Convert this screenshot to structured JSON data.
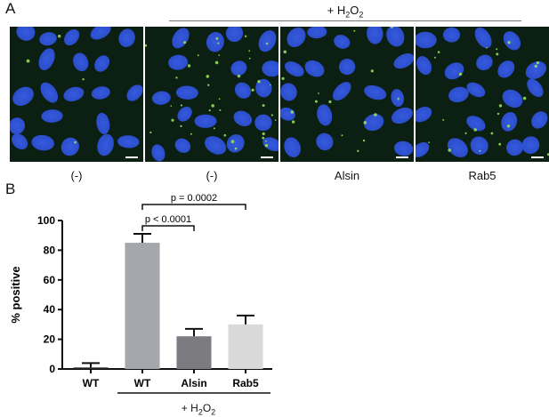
{
  "panel_a": {
    "letter": "A",
    "treatment_label": {
      "prefix": "+ H",
      "sub": "2",
      "mid": "O",
      "sub2": "2"
    },
    "images": [
      {
        "label": "(-)"
      },
      {
        "label": "(-)"
      },
      {
        "label": "Alsin"
      },
      {
        "label": "Rab5"
      }
    ],
    "colors": {
      "nucleus": "#2c4fd6",
      "background": "#0b1f12",
      "puncta": "#9be85a"
    }
  },
  "panel_b": {
    "letter": "B",
    "treatment_label": {
      "prefix": "+ H",
      "sub": "2",
      "mid": "O",
      "sub2": "2"
    }
  },
  "chart_data": {
    "type": "bar",
    "categories": [
      "WT",
      "WT",
      "Alsin",
      "Rab5"
    ],
    "values": [
      1,
      85,
      22,
      30
    ],
    "errors": [
      3,
      6,
      5,
      6
    ],
    "colors": [
      "#222222",
      "#a6a6ad",
      "#7b7b80",
      "#d9d9d9"
    ],
    "ylabel": "% positive",
    "ylim": [
      0,
      100
    ],
    "yticks": [
      0,
      20,
      40,
      60,
      80,
      100
    ],
    "annotations": [
      {
        "from": 1,
        "to": 2,
        "text": "p < 0.0001"
      },
      {
        "from": 1,
        "to": 3,
        "text": "p = 0.0002"
      }
    ]
  }
}
